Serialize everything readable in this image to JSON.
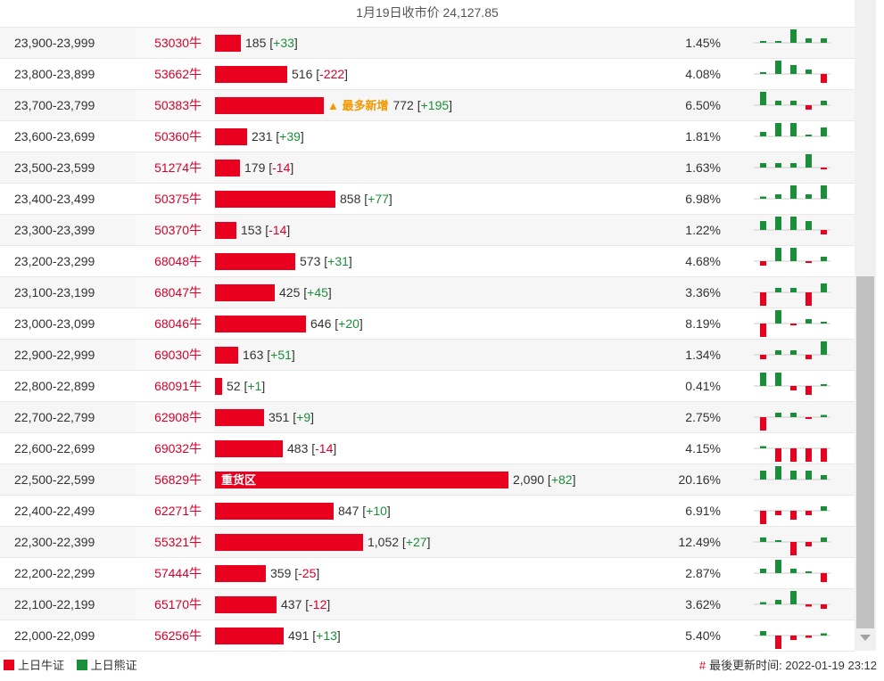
{
  "header": {
    "title": "1月19日收市价 24,127.85"
  },
  "colors": {
    "bull": "#e8001e",
    "bear": "#1a8f3a"
  },
  "max_count": 2090,
  "rows": [
    {
      "range": "23,900-23,999",
      "code": "53030牛",
      "count": "185",
      "change": "+33",
      "pct": "1.45%",
      "count_val": 185,
      "tag": "",
      "spark": [
        0,
        0,
        3,
        1,
        1
      ]
    },
    {
      "range": "23,800-23,899",
      "code": "53662牛",
      "count": "516",
      "change": "-222",
      "pct": "4.08%",
      "count_val": 516,
      "tag": "",
      "spark": [
        0,
        3,
        2,
        1,
        -2
      ]
    },
    {
      "range": "23,700-23,799",
      "code": "50383牛",
      "count": "772",
      "change": "+195",
      "pct": "6.50%",
      "count_val": 772,
      "tag": "▲ 最多新增",
      "spark": [
        3,
        1,
        1,
        -1,
        1
      ]
    },
    {
      "range": "23,600-23,699",
      "code": "50360牛",
      "count": "231",
      "change": "+39",
      "pct": "1.81%",
      "count_val": 231,
      "tag": "",
      "spark": [
        1,
        3,
        3,
        0,
        2
      ]
    },
    {
      "range": "23,500-23,599",
      "code": "51274牛",
      "count": "179",
      "change": "-14",
      "pct": "1.63%",
      "count_val": 179,
      "tag": "",
      "spark": [
        1,
        1,
        1,
        3,
        -0.3
      ]
    },
    {
      "range": "23,400-23,499",
      "code": "50375牛",
      "count": "858",
      "change": "+77",
      "pct": "6.98%",
      "count_val": 858,
      "tag": "",
      "spark": [
        0.5,
        1,
        3,
        1,
        3
      ]
    },
    {
      "range": "23,300-23,399",
      "code": "50370牛",
      "count": "153",
      "change": "-14",
      "pct": "1.22%",
      "count_val": 153,
      "tag": "",
      "spark": [
        2,
        3,
        3,
        2,
        -1
      ]
    },
    {
      "range": "23,200-23,299",
      "code": "68048牛",
      "count": "573",
      "change": "+31",
      "pct": "4.68%",
      "count_val": 573,
      "tag": "",
      "spark": [
        -1,
        3,
        3,
        -0.3,
        1
      ]
    },
    {
      "range": "23,100-23,199",
      "code": "68047牛",
      "count": "425",
      "change": "+45",
      "pct": "3.36%",
      "count_val": 425,
      "tag": "",
      "spark": [
        -3,
        1,
        1,
        -3,
        2
      ]
    },
    {
      "range": "23,000-23,099",
      "code": "68046牛",
      "count": "646",
      "change": "+20",
      "pct": "8.19%",
      "count_val": 646,
      "tag": "",
      "spark": [
        -3,
        3,
        -0.3,
        1,
        0.3
      ]
    },
    {
      "range": "22,900-22,999",
      "code": "69030牛",
      "count": "163",
      "change": "+51",
      "pct": "1.34%",
      "count_val": 163,
      "tag": "",
      "spark": [
        -1,
        1,
        1,
        -1,
        3
      ]
    },
    {
      "range": "22,800-22,899",
      "code": "68091牛",
      "count": "52",
      "change": "+1",
      "pct": "0.41%",
      "count_val": 52,
      "tag": "",
      "spark": [
        3,
        3,
        -1,
        -2,
        0
      ]
    },
    {
      "range": "22,700-22,799",
      "code": "62908牛",
      "count": "351",
      "change": "+9",
      "pct": "2.75%",
      "count_val": 351,
      "tag": "",
      "spark": [
        -3,
        1,
        1,
        -0.3,
        0.5
      ]
    },
    {
      "range": "22,600-22,699",
      "code": "69032牛",
      "count": "483",
      "change": "-14",
      "pct": "4.15%",
      "count_val": 483,
      "tag": "",
      "spark": [
        0.5,
        -3,
        -3,
        -3,
        -3
      ]
    },
    {
      "range": "22,500-22,599",
      "code": "56829牛",
      "count": "2,090",
      "change": "+82",
      "pct": "20.16%",
      "count_val": 2090,
      "tag": "重货区",
      "spark": [
        2,
        3,
        2,
        2,
        1
      ]
    },
    {
      "range": "22,400-22,499",
      "code": "62271牛",
      "count": "847",
      "change": "+10",
      "pct": "6.91%",
      "count_val": 847,
      "tag": "",
      "spark": [
        -3,
        -1,
        -2,
        -1,
        1
      ]
    },
    {
      "range": "22,300-22,399",
      "code": "55321牛",
      "count": "1,052",
      "change": "+27",
      "pct": "12.49%",
      "count_val": 1052,
      "tag": "",
      "spark": [
        1,
        0.3,
        -3,
        -1,
        1
      ]
    },
    {
      "range": "22,200-22,299",
      "code": "57444牛",
      "count": "359",
      "change": "-25",
      "pct": "2.87%",
      "count_val": 359,
      "tag": "",
      "spark": [
        1,
        3,
        1,
        0.3,
        -2
      ]
    },
    {
      "range": "22,100-22,199",
      "code": "65170牛",
      "count": "437",
      "change": "-12",
      "pct": "3.62%",
      "count_val": 437,
      "tag": "",
      "spark": [
        0.5,
        1,
        3,
        -0.5,
        -1
      ]
    },
    {
      "range": "22,000-22,099",
      "code": "56256牛",
      "count": "491",
      "change": "+13",
      "pct": "5.40%",
      "count_val": 491,
      "tag": "",
      "spark": [
        1,
        -3,
        -1,
        -0.5,
        0.5
      ]
    }
  ],
  "footer": {
    "legend_bull": "上日牛证",
    "legend_bear": "上日熊证",
    "updated_hash": "#",
    "updated_label": "最後更新时间: 2022-01-19 23:12"
  }
}
